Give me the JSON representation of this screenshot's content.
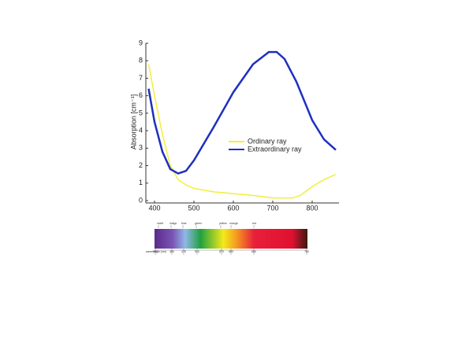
{
  "chart_data": {
    "type": "line",
    "y_label": "Absorption [cm⁻¹]",
    "xlim": [
      378,
      868
    ],
    "ylim": [
      0,
      9
    ],
    "xticks": [
      400,
      500,
      600,
      700,
      800
    ],
    "yticks": [
      0,
      1,
      2,
      3,
      4,
      5,
      6,
      7,
      8,
      9
    ],
    "legend": "center-right",
    "series": [
      {
        "name": "Ordinary ray",
        "color": "#f2ef3a",
        "x": [
          385,
          400,
          420,
          440,
          460,
          480,
          500,
          550,
          600,
          650,
          700,
          750,
          770,
          800,
          830,
          860
        ],
        "values": [
          7.8,
          6.0,
          3.8,
          2.0,
          1.2,
          0.9,
          0.7,
          0.5,
          0.4,
          0.3,
          0.15,
          0.15,
          0.3,
          0.8,
          1.2,
          1.5
        ]
      },
      {
        "name": "Extraordinary ray",
        "color": "#1f2fc0",
        "x": [
          385,
          400,
          420,
          440,
          460,
          480,
          500,
          550,
          600,
          650,
          690,
          710,
          730,
          760,
          800,
          830,
          860
        ],
        "values": [
          6.4,
          4.5,
          2.8,
          1.8,
          1.55,
          1.7,
          2.3,
          4.2,
          6.2,
          7.8,
          8.5,
          8.5,
          8.1,
          6.8,
          4.6,
          3.5,
          2.9
        ]
      }
    ]
  },
  "spectrum": {
    "color_names": [
      "violet",
      "indigo",
      "blue",
      "green",
      "yellow",
      "orange",
      "red"
    ],
    "wavelength_label": "wavelength (nm)",
    "wavelengths": [
      "380",
      "450",
      "475",
      "510",
      "570",
      "590",
      "650",
      "750"
    ]
  }
}
